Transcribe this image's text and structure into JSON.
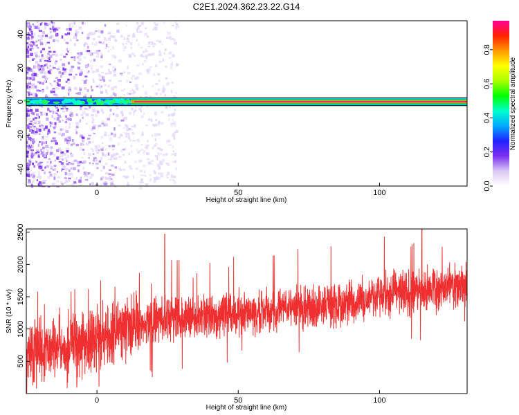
{
  "title": "C2E1.2024.362.23.22.G14",
  "chart_data": [
    {
      "type": "heatmap",
      "name": "spectrogram",
      "xlabel": "Height of straight line (km)",
      "ylabel": "Frequency (Hz)",
      "xlim": [
        -25,
        131
      ],
      "ylim": [
        -50,
        48
      ],
      "xticks": [
        0,
        50,
        100
      ],
      "yticks": [
        -40,
        -20,
        0,
        20,
        40
      ],
      "colorbar": {
        "label": "Normalized spectral amplitude",
        "range": [
          0,
          0.97
        ],
        "ticks": [
          0.0,
          0.2,
          0.4,
          0.6,
          0.8
        ],
        "colors": [
          "#ffffff",
          "#d9c8f5",
          "#7b2ff0",
          "#2222ff",
          "#00aaff",
          "#00ffcc",
          "#00ff00",
          "#aaff00",
          "#ffff00",
          "#ff9900",
          "#ff2200",
          "#ff0099"
        ]
      },
      "signal_band": {
        "center_hz": 0,
        "half_width_hz": 1.5
      },
      "noise_extent_km": [
        -25,
        28
      ]
    },
    {
      "type": "line",
      "name": "snr",
      "xlabel": "Height of straight line (km)",
      "ylabel": "SNR (10 * v/v)",
      "xlim": [
        -25,
        131
      ],
      "ylim": [
        0,
        2550
      ],
      "xticks": [
        0,
        50,
        100
      ],
      "yticks": [
        500,
        1000,
        1500,
        2000,
        2500
      ],
      "color": "#f03030",
      "trend": [
        {
          "x": -25,
          "y": 620
        },
        {
          "x": -10,
          "y": 700
        },
        {
          "x": 0,
          "y": 850
        },
        {
          "x": 10,
          "y": 1000
        },
        {
          "x": 25,
          "y": 1150
        },
        {
          "x": 50,
          "y": 1250
        },
        {
          "x": 75,
          "y": 1350
        },
        {
          "x": 90,
          "y": 1430
        },
        {
          "x": 100,
          "y": 1520
        },
        {
          "x": 115,
          "y": 1600
        },
        {
          "x": 131,
          "y": 1680
        }
      ],
      "peaks": [
        {
          "x": 24,
          "y": 2470
        },
        {
          "x": 115,
          "y": 2560
        }
      ]
    }
  ]
}
